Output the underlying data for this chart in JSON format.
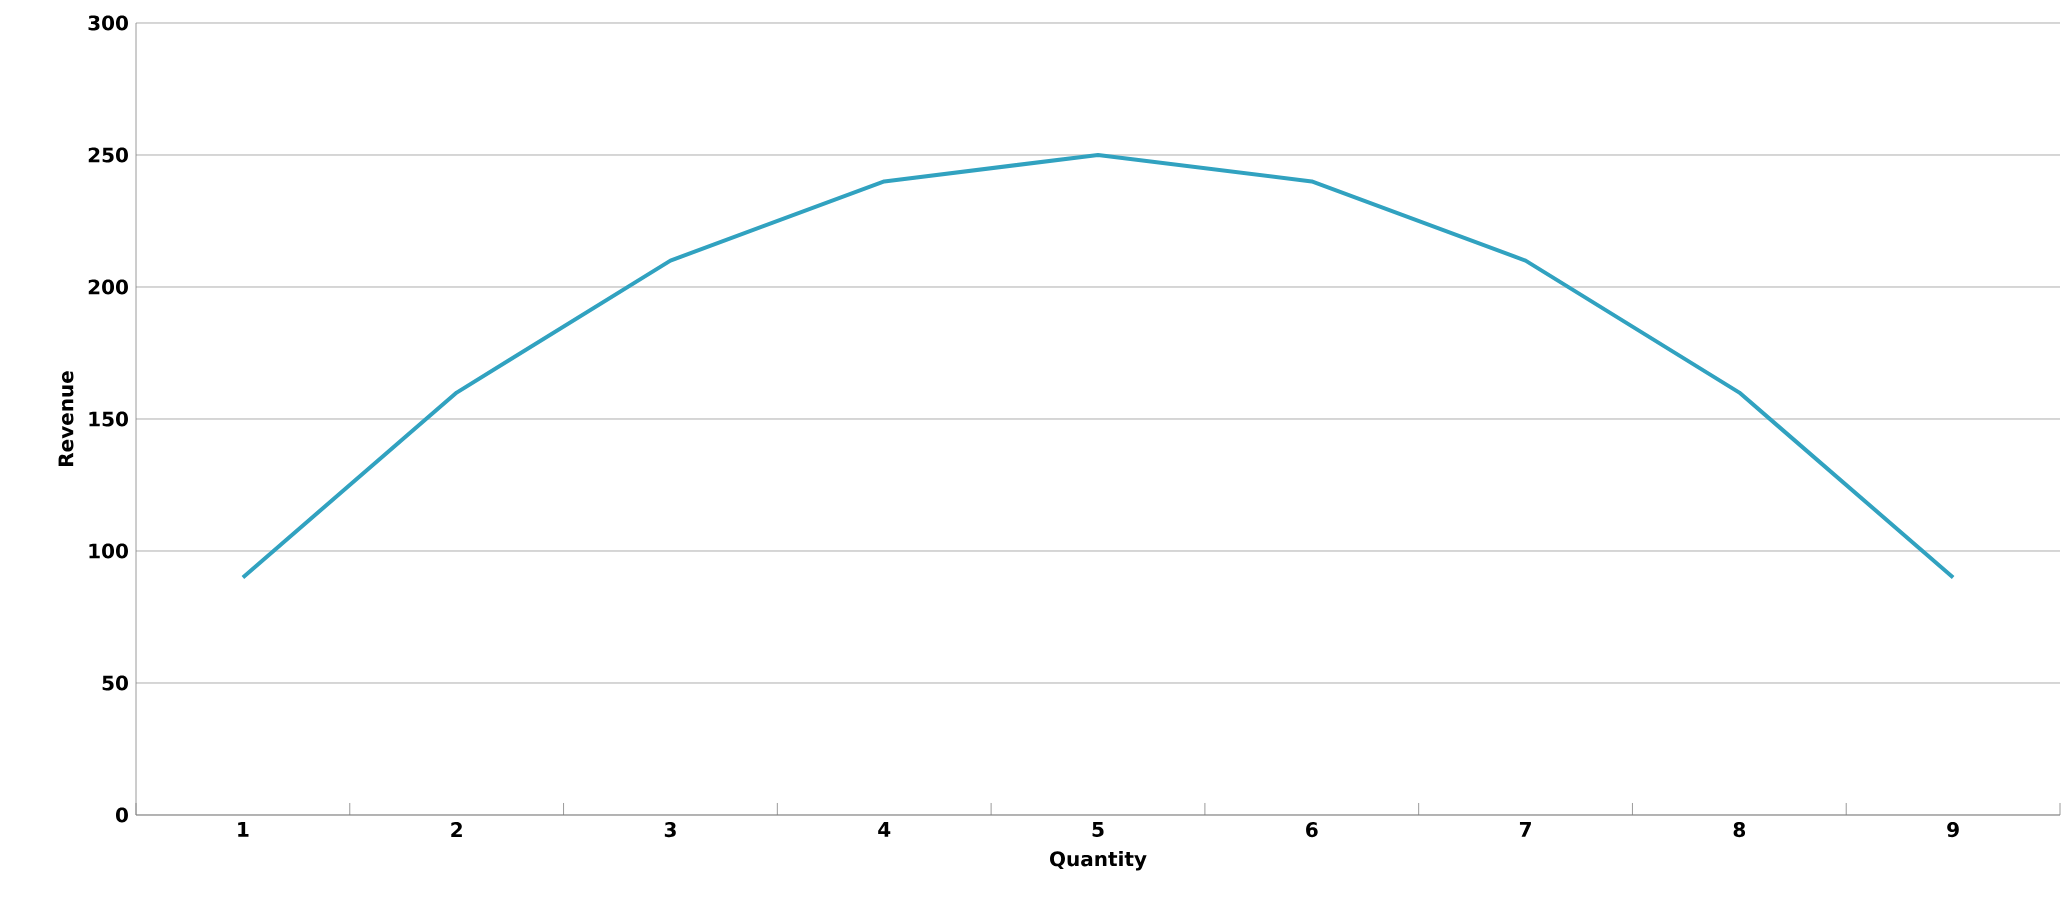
{
  "chart_data": {
    "type": "line",
    "xlabel": "Quantity",
    "ylabel": "Revenue",
    "categories": [
      "1",
      "2",
      "3",
      "4",
      "5",
      "6",
      "7",
      "8",
      "9"
    ],
    "values": [
      90,
      160,
      210,
      240,
      250,
      240,
      210,
      160,
      90
    ],
    "color": "#31a2c0",
    "ylim": [
      0,
      300
    ],
    "yticks": [
      0,
      50,
      100,
      150,
      200,
      250,
      300
    ],
    "grid": "y",
    "marker": "none",
    "line_style": "solid"
  }
}
